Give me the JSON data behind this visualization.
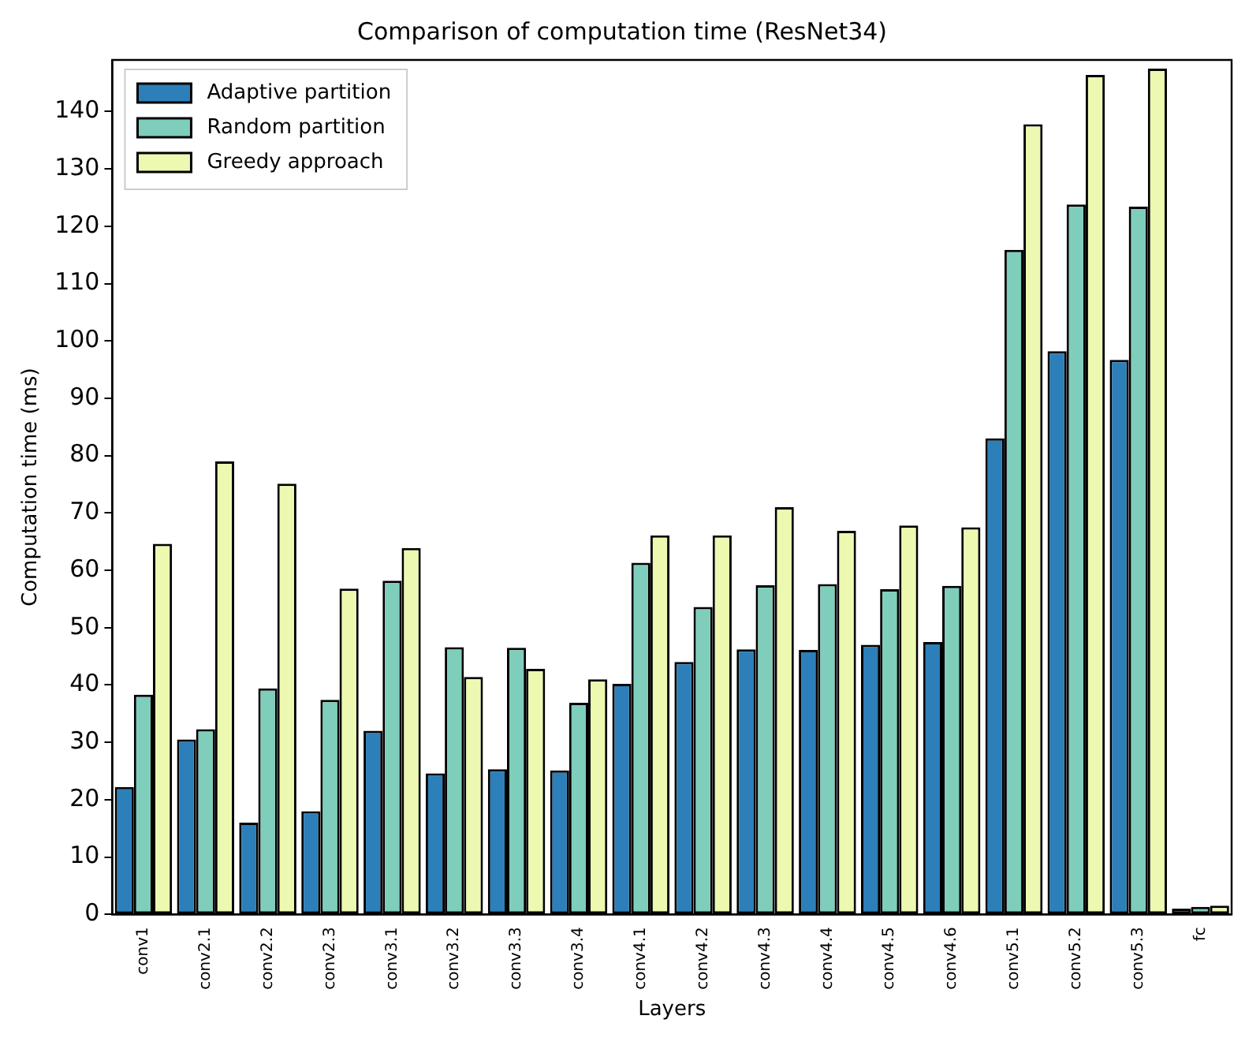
{
  "chart_data": {
    "type": "bar",
    "title": "Comparison of computation time (ResNet34)",
    "xlabel": "Layers",
    "ylabel": "Computation time (ms)",
    "categories": [
      "conv1",
      "conv2.1",
      "conv2.2",
      "conv2.3",
      "conv3.1",
      "conv3.2",
      "conv3.3",
      "conv3.4",
      "conv4.1",
      "conv4.2",
      "conv4.3",
      "conv4.4",
      "conv4.5",
      "conv4.6",
      "conv5.1",
      "conv5.2",
      "conv5.3",
      "fc"
    ],
    "series": [
      {
        "name": "Adaptive partition",
        "color": "#2c7fb8",
        "values": [
          22.2,
          30.5,
          16,
          18,
          32,
          24.6,
          25.3,
          25.1,
          40.2,
          44,
          46.2,
          46.1,
          47,
          47.5,
          83,
          98.2,
          96.7,
          1
        ]
      },
      {
        "name": "Random partition",
        "color": "#7fcdbb",
        "values": [
          38.3,
          32.3,
          39.4,
          37.4,
          58.2,
          46.6,
          46.5,
          36.9,
          61.3,
          53.6,
          57.4,
          57.6,
          56.7,
          57.3,
          115.9,
          123.8,
          123.4,
          1.3
        ]
      },
      {
        "name": "Greedy approach",
        "color": "#edf8b1",
        "values": [
          64.6,
          79,
          75.1,
          56.8,
          63.9,
          41.4,
          42.8,
          41,
          66.1,
          66.1,
          71,
          66.9,
          67.8,
          67.5,
          137.8,
          146.4,
          147.5,
          1.5
        ]
      }
    ],
    "ylim": [
      0,
      149
    ],
    "yticks": [
      0,
      10,
      20,
      30,
      40,
      50,
      60,
      70,
      80,
      90,
      100,
      110,
      120,
      130,
      140
    ],
    "grid": false,
    "legend": "top left"
  }
}
